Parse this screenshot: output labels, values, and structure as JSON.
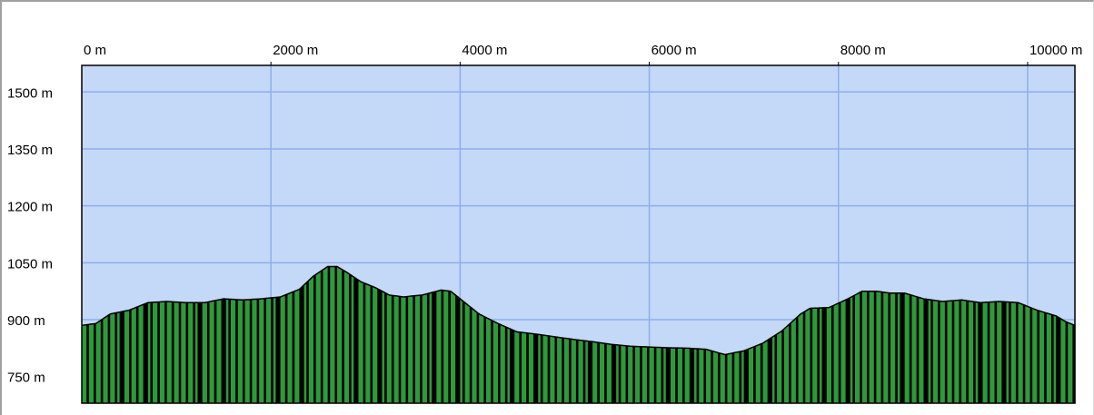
{
  "chart_data": {
    "type": "area",
    "xlabel": "",
    "ylabel": "",
    "xlim": [
      0,
      10500
    ],
    "ylim": [
      680,
      1570
    ],
    "x_ticks": [
      "0 m",
      "2000 m",
      "4000 m",
      "6000 m",
      "8000 m",
      "10000 m"
    ],
    "y_ticks": [
      "750 m",
      "900 m",
      "1050 m",
      "1200 m",
      "1350 m",
      "1500 m"
    ],
    "grid": true,
    "colors": {
      "background": "#c4d8f7",
      "grid": "#8fadec",
      "fill": "#2e9a3a",
      "fill_dark": "#000000",
      "outline": "#000000"
    },
    "series": [
      {
        "values": [
          [
            0,
            885
          ],
          [
            150,
            890
          ],
          [
            300,
            915
          ],
          [
            500,
            925
          ],
          [
            700,
            945
          ],
          [
            900,
            948
          ],
          [
            1100,
            945
          ],
          [
            1300,
            945
          ],
          [
            1500,
            955
          ],
          [
            1700,
            952
          ],
          [
            1900,
            955
          ],
          [
            2100,
            960
          ],
          [
            2300,
            980
          ],
          [
            2450,
            1015
          ],
          [
            2600,
            1040
          ],
          [
            2700,
            1040
          ],
          [
            2800,
            1025
          ],
          [
            2950,
            1000
          ],
          [
            3100,
            985
          ],
          [
            3250,
            965
          ],
          [
            3400,
            960
          ],
          [
            3600,
            965
          ],
          [
            3800,
            978
          ],
          [
            3900,
            975
          ],
          [
            4050,
            945
          ],
          [
            4200,
            915
          ],
          [
            4400,
            890
          ],
          [
            4600,
            868
          ],
          [
            4800,
            862
          ],
          [
            5000,
            855
          ],
          [
            5200,
            848
          ],
          [
            5400,
            842
          ],
          [
            5600,
            835
          ],
          [
            5800,
            830
          ],
          [
            6000,
            828
          ],
          [
            6200,
            826
          ],
          [
            6400,
            825
          ],
          [
            6600,
            822
          ],
          [
            6800,
            808
          ],
          [
            7000,
            818
          ],
          [
            7200,
            838
          ],
          [
            7400,
            870
          ],
          [
            7600,
            915
          ],
          [
            7700,
            930
          ],
          [
            7900,
            932
          ],
          [
            8100,
            955
          ],
          [
            8250,
            975
          ],
          [
            8400,
            975
          ],
          [
            8550,
            970
          ],
          [
            8700,
            970
          ],
          [
            8900,
            955
          ],
          [
            9100,
            948
          ],
          [
            9300,
            952
          ],
          [
            9500,
            945
          ],
          [
            9700,
            948
          ],
          [
            9900,
            945
          ],
          [
            10100,
            925
          ],
          [
            10300,
            910
          ],
          [
            10400,
            895
          ],
          [
            10500,
            885
          ]
        ]
      }
    ]
  }
}
